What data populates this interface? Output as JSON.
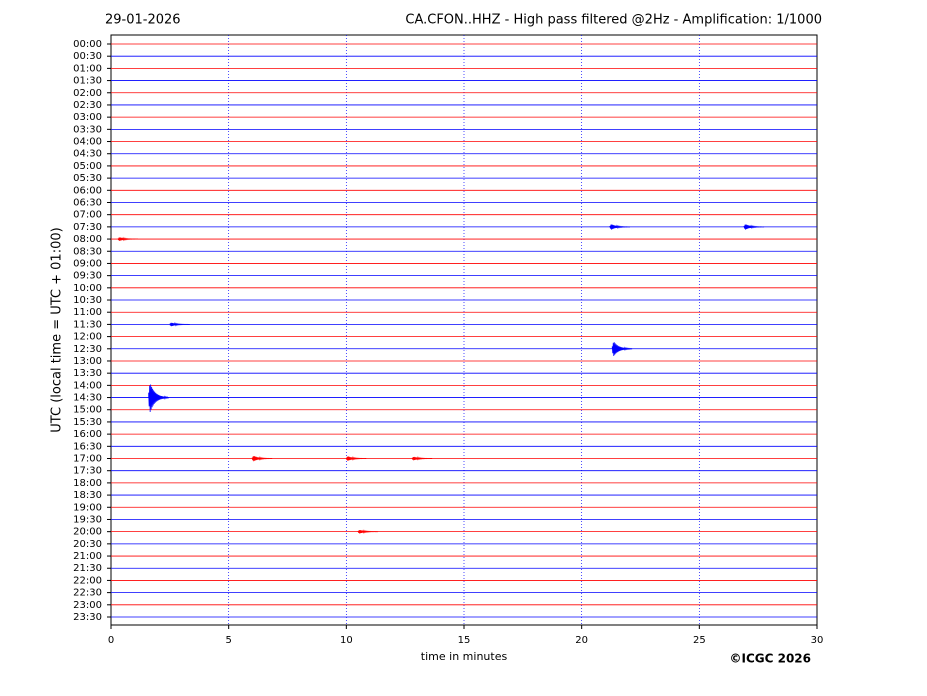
{
  "chart_data": {
    "type": "helicorder",
    "date": "29-01-2026",
    "title": "CA.CFON..HHZ - High pass filtered @2Hz - Amplification: 1/1000",
    "x_label": "time in minutes",
    "y_label": "UTC (local time = UTC + 01:00)",
    "annotation": "©ICGC 2026",
    "categories": [
      "00:00",
      "00:30",
      "01:00",
      "01:30",
      "02:00",
      "02:30",
      "03:00",
      "03:30",
      "04:00",
      "04:30",
      "05:00",
      "05:30",
      "06:00",
      "06:30",
      "07:00",
      "07:30",
      "08:00",
      "08:30",
      "09:00",
      "09:30",
      "10:00",
      "10:30",
      "11:00",
      "11:30",
      "12:00",
      "12:30",
      "13:00",
      "13:30",
      "14:00",
      "14:30",
      "15:00",
      "15:30",
      "16:00",
      "16:30",
      "17:00",
      "17:30",
      "18:00",
      "18:30",
      "19:00",
      "19:30",
      "20:00",
      "20:30",
      "21:00",
      "21:30",
      "22:00",
      "22:30",
      "23:00",
      "23:30"
    ],
    "colors": [
      "#ff0000",
      "#0000ff"
    ],
    "xlim": [
      0,
      30
    ],
    "xticks": [
      0,
      5,
      10,
      15,
      20,
      25,
      30
    ],
    "grid": true,
    "events": [
      {
        "row": 29,
        "minute": 1.6,
        "amplitude": 1.6
      },
      {
        "row": 25,
        "minute": 21.3,
        "amplitude": 0.8
      },
      {
        "row": 15,
        "minute": 21.2,
        "amplitude": 0.3
      },
      {
        "row": 15,
        "minute": 26.9,
        "amplitude": 0.3
      },
      {
        "row": 34,
        "minute": 6.0,
        "amplitude": 0.3
      },
      {
        "row": 34,
        "minute": 10.0,
        "amplitude": 0.25
      },
      {
        "row": 34,
        "minute": 12.8,
        "amplitude": 0.2
      },
      {
        "row": 40,
        "minute": 10.5,
        "amplitude": 0.2
      },
      {
        "row": 23,
        "minute": 2.5,
        "amplitude": 0.2
      },
      {
        "row": 16,
        "minute": 0.3,
        "amplitude": 0.2
      }
    ]
  }
}
